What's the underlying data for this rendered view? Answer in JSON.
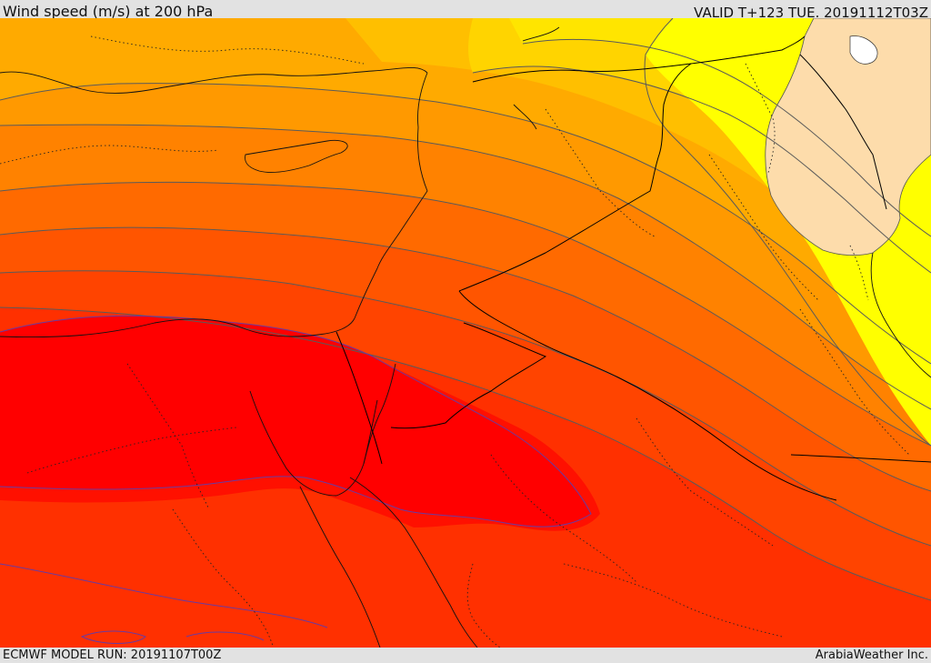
{
  "header": {
    "title": "Wind speed (m/s) at 200 hPa",
    "valid": "VALID T+123 TUE. 20191112T03Z"
  },
  "footer": {
    "model_run": "ECMWF MODEL RUN: 20191107T00Z",
    "credit": "ArabiaWeather Inc."
  },
  "map": {
    "field": "wind-speed-200hPa",
    "colors": {
      "yellow_light": "#ffff00",
      "yellow": "#ffe500",
      "gold": "#ffc400",
      "amber": "#ffb000",
      "orange": "#ff9900",
      "dark_orange": "#ff7a00",
      "red_orange": "#ff5500",
      "orange_red": "#ff3000",
      "red": "#ff0000",
      "land_tan": "#fde2b0",
      "contour": "#5a5a5a",
      "core_contour": "#6633aa",
      "border": "#000000"
    }
  }
}
